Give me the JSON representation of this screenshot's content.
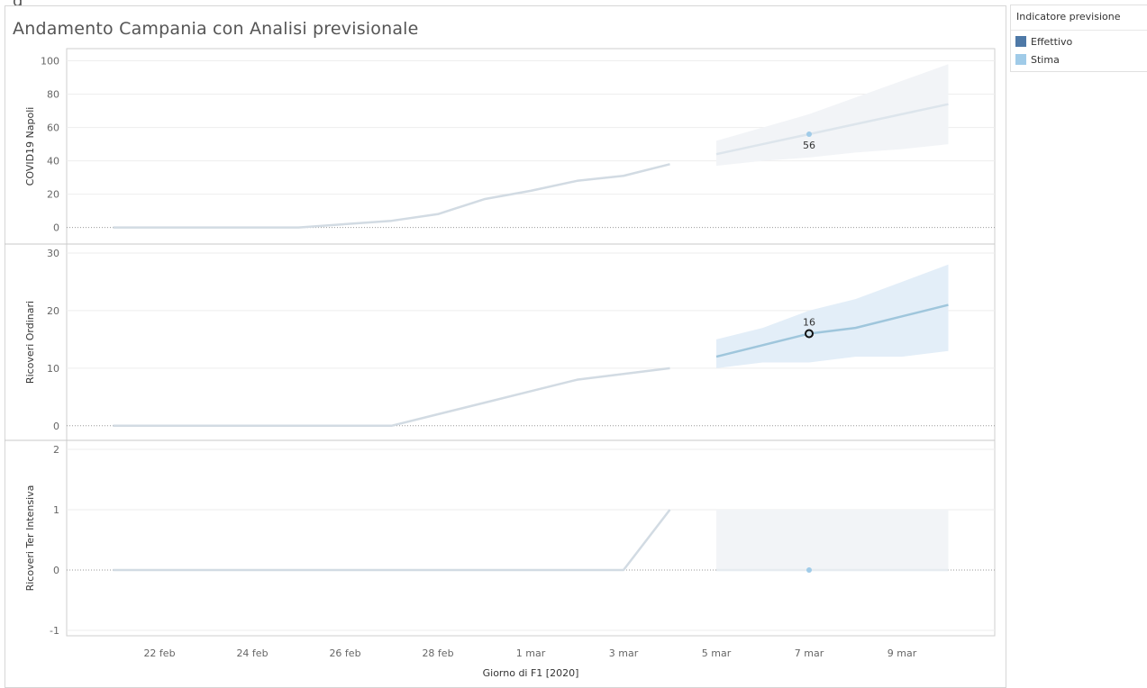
{
  "stray_char": "g",
  "legend": {
    "title": "Indicatore previsione",
    "items": [
      {
        "label": "Effettivo",
        "color": "#4e79a7"
      },
      {
        "label": "Stima",
        "color": "#a0cbe8"
      }
    ]
  },
  "chart_data": {
    "type": "line",
    "title": "Andamento Campania con Analisi previsionale",
    "xlabel": "Giorno di F1 [2020]",
    "x_ticks": [
      "22 feb",
      "24 feb",
      "26 feb",
      "28 feb",
      "1 mar",
      "3 mar",
      "5 mar",
      "7 mar",
      "9 mar"
    ],
    "x_range": [
      "2020-02-20",
      "2020-03-11"
    ],
    "panels": [
      {
        "ylabel": "COVID19 Napoli",
        "ylim": [
          -4,
          103
        ],
        "yticks": [
          0,
          20,
          40,
          60,
          80,
          100
        ],
        "series": [
          {
            "name": "Effettivo",
            "color": "#d2dbe3",
            "x": [
              "2020-02-21",
              "2020-02-22",
              "2020-02-23",
              "2020-02-24",
              "2020-02-25",
              "2020-02-26",
              "2020-02-27",
              "2020-02-28",
              "2020-02-29",
              "2020-03-01",
              "2020-03-02",
              "2020-03-03",
              "2020-03-04"
            ],
            "y": [
              0,
              0,
              0,
              0,
              0,
              2,
              4,
              8,
              17,
              22,
              28,
              31,
              38
            ]
          },
          {
            "name": "Stima",
            "color": "#dde5ec",
            "x": [
              "2020-03-05",
              "2020-03-06",
              "2020-03-07",
              "2020-03-08",
              "2020-03-09",
              "2020-03-10"
            ],
            "y": [
              44,
              50,
              56,
              62,
              68,
              74
            ],
            "upper": [
              52,
              60,
              68,
              78,
              88,
              98
            ],
            "lower": [
              37,
              40,
              42,
              45,
              47,
              50
            ],
            "band_color": "#f2f4f7"
          }
        ],
        "annotations": [
          {
            "x": "2020-03-07",
            "y": 56,
            "label": "56",
            "marker": "dot"
          }
        ]
      },
      {
        "ylabel": "Ricoveri Ordinari",
        "ylim": [
          -0.5,
          30
        ],
        "yticks": [
          0,
          10,
          20,
          30
        ],
        "series": [
          {
            "name": "Effettivo",
            "color": "#d2dbe3",
            "x": [
              "2020-02-21",
              "2020-02-22",
              "2020-02-23",
              "2020-02-24",
              "2020-02-25",
              "2020-02-26",
              "2020-02-27",
              "2020-02-28",
              "2020-02-29",
              "2020-03-01",
              "2020-03-02",
              "2020-03-03",
              "2020-03-04"
            ],
            "y": [
              0,
              0,
              0,
              0,
              0,
              0,
              0,
              2,
              4,
              6,
              8,
              9,
              10
            ]
          },
          {
            "name": "Stima",
            "color": "#9fc6dc",
            "x": [
              "2020-03-05",
              "2020-03-06",
              "2020-03-07",
              "2020-03-08",
              "2020-03-09",
              "2020-03-10"
            ],
            "y": [
              12,
              14,
              16,
              17,
              19,
              21
            ],
            "upper": [
              15,
              17,
              20,
              22,
              25,
              28
            ],
            "lower": [
              10,
              11,
              11,
              12,
              12,
              13
            ],
            "band_color": "#e3eef8"
          }
        ],
        "annotations": [
          {
            "x": "2020-03-07",
            "y": 16,
            "label": "16",
            "marker": "ring"
          }
        ]
      },
      {
        "ylabel": "Ricoveri Ter Intensiva",
        "ylim": [
          -1,
          2
        ],
        "yticks": [
          -1,
          0,
          1,
          2
        ],
        "series": [
          {
            "name": "Effettivo",
            "color": "#d2dbe3",
            "x": [
              "2020-02-21",
              "2020-02-22",
              "2020-02-23",
              "2020-02-24",
              "2020-02-25",
              "2020-02-26",
              "2020-02-27",
              "2020-02-28",
              "2020-02-29",
              "2020-03-01",
              "2020-03-02",
              "2020-03-03",
              "2020-03-04"
            ],
            "y": [
              0,
              0,
              0,
              0,
              0,
              0,
              0,
              0,
              0,
              0,
              0,
              0,
              1
            ]
          },
          {
            "name": "Stima",
            "color": "#e6ebf0",
            "x": [
              "2020-03-05",
              "2020-03-06",
              "2020-03-07",
              "2020-03-08",
              "2020-03-09",
              "2020-03-10"
            ],
            "y": [
              0,
              0,
              0,
              0,
              0,
              0
            ],
            "upper": [
              1,
              1,
              1,
              1,
              1,
              1
            ],
            "lower": [
              0,
              0,
              0,
              0,
              0,
              0
            ],
            "band_color": "#f2f4f7"
          }
        ],
        "annotations": [
          {
            "x": "2020-03-07",
            "y": 0,
            "label": "",
            "marker": "dot"
          }
        ]
      }
    ]
  }
}
